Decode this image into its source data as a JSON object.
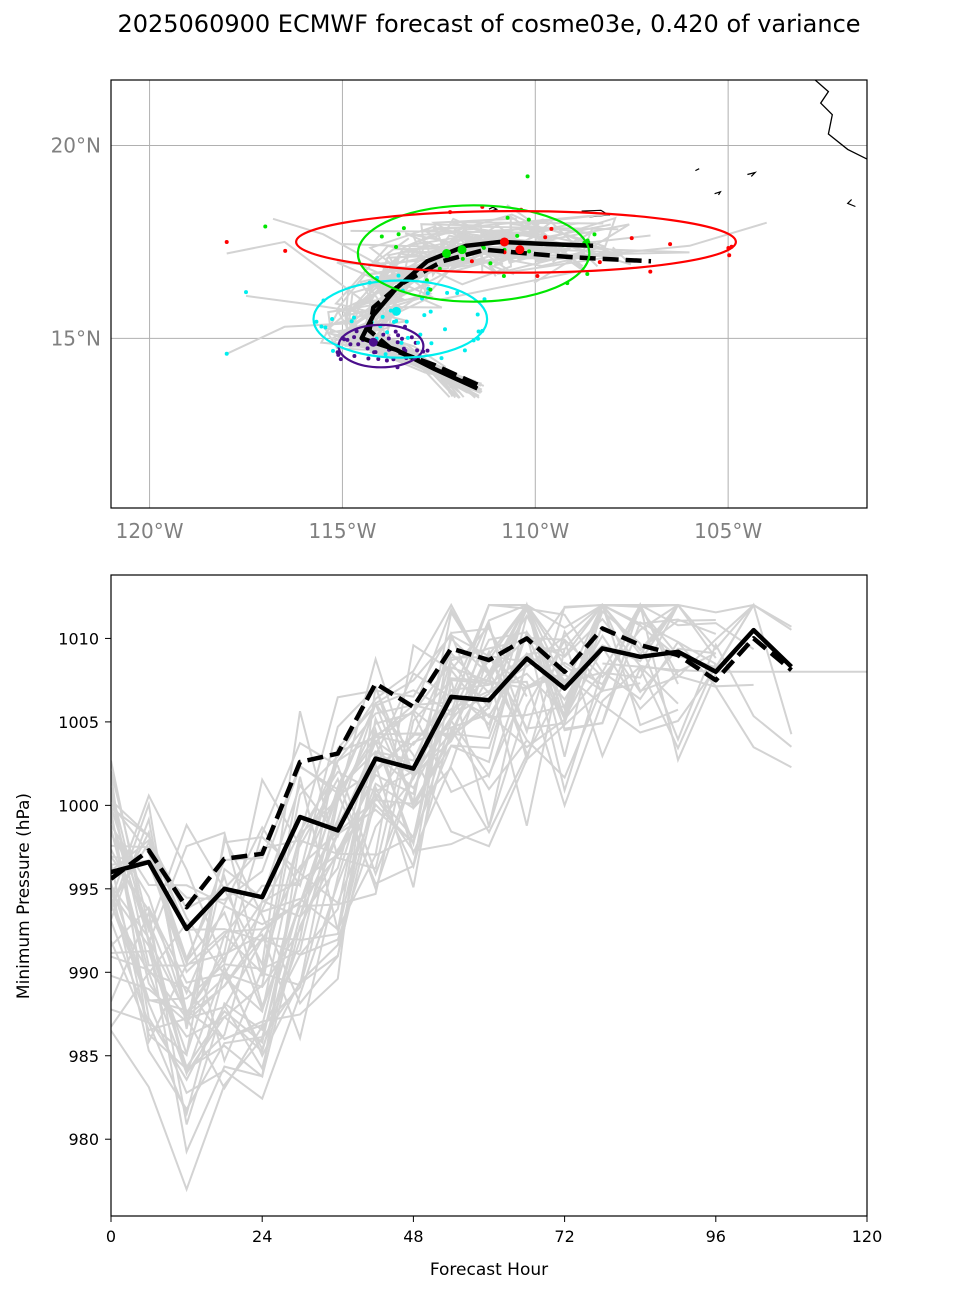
{
  "title": "2025060900 ECMWF forecast of cosme03e, 0.420 of variance",
  "colors": {
    "ensemble": "#d3d3d3",
    "mean": "#000000",
    "t0": "#4b0f8c",
    "t24": "#00eeee",
    "t48": "#00e600",
    "t72": "#ff0000",
    "coast": "#000000",
    "grid": "#b0b0b0"
  },
  "chart_data": [
    {
      "type": "map",
      "xticks": [
        {
          "value": -120,
          "label": "120°W"
        },
        {
          "value": -115,
          "label": "115°W"
        },
        {
          "value": -110,
          "label": "110°W"
        },
        {
          "value": -105,
          "label": "105°W"
        }
      ],
      "yticks": [
        {
          "value": 15,
          "label": "15°N"
        },
        {
          "value": 20,
          "label": "20°N"
        }
      ],
      "lon_range": [
        -121,
        -101.4
      ],
      "lat_range": [
        10.6,
        21.7
      ],
      "grid": true,
      "series": [
        {
          "style": "solid",
          "points": [
            [
              -111.5,
              13.7
            ],
            [
              -112.6,
              14.2
            ],
            [
              -113.6,
              14.7
            ],
            [
              -114.5,
              15.0
            ],
            [
              -114.2,
              15.6
            ],
            [
              -113.6,
              16.3
            ],
            [
              -112.8,
              17.0
            ],
            [
              -111.8,
              17.4
            ],
            [
              -110.9,
              17.5
            ],
            [
              -109.8,
              17.45
            ],
            [
              -108.5,
              17.4
            ]
          ]
        },
        {
          "style": "dashed",
          "points": [
            [
              -111.5,
              13.8
            ],
            [
              -112.6,
              14.3
            ],
            [
              -113.7,
              14.7
            ],
            [
              -114.3,
              15.2
            ],
            [
              -114.2,
              15.8
            ],
            [
              -113.5,
              16.4
            ],
            [
              -112.4,
              17.0
            ],
            [
              -111.3,
              17.3
            ],
            [
              -110.2,
              17.2
            ],
            [
              -109.0,
              17.1
            ],
            [
              -107.0,
              17.0
            ]
          ]
        }
      ],
      "ellipses": [
        {
          "name_key": "t0",
          "center": [
            -114.0,
            14.8
          ],
          "width_lon": 2.2,
          "height_lat": 1.1
        },
        {
          "name_key": "t24",
          "center": [
            -113.5,
            15.5
          ],
          "width_lon": 4.5,
          "height_lat": 2.0
        },
        {
          "name_key": "t48",
          "center": [
            -111.6,
            17.2
          ],
          "width_lon": 6.0,
          "height_lat": 2.5
        },
        {
          "name_key": "t72",
          "center": [
            -110.5,
            17.5
          ],
          "width_lon": 11.4,
          "height_lat": 1.6
        }
      ]
    },
    {
      "type": "line",
      "xlabel": "Forecast Hour",
      "ylabel": "Minimum Pressure (hPa)",
      "xlim": [
        0,
        120
      ],
      "ylim": [
        975.4,
        1013.8
      ],
      "xticks": [
        0,
        24,
        48,
        72,
        96,
        120
      ],
      "yticks": [
        980,
        985,
        990,
        995,
        1000,
        1005,
        1010
      ],
      "x": [
        0,
        6,
        12,
        18,
        24,
        30,
        36,
        42,
        48,
        54,
        60,
        66,
        72,
        78,
        84,
        90,
        96,
        102,
        108
      ],
      "series": [
        {
          "style": "solid",
          "values": [
            996,
            996.6,
            992.6,
            995.0,
            994.5,
            999.3,
            998.5,
            1002.8,
            1002.2,
            1006.5,
            1006.3,
            1008.8,
            1007.0,
            1009.4,
            1008.9,
            1009.2,
            1008.0,
            1010.5,
            1008.3
          ]
        },
        {
          "style": "dashed",
          "values": [
            995.6,
            997.3,
            993.9,
            996.8,
            997.1,
            1002.6,
            1003.1,
            1007.3,
            1005.9,
            1009.4,
            1008.7,
            1010.0,
            1008.0,
            1010.6,
            1009.6,
            1009.0,
            1007.5,
            1010.0,
            1008.1
          ]
        }
      ]
    }
  ]
}
